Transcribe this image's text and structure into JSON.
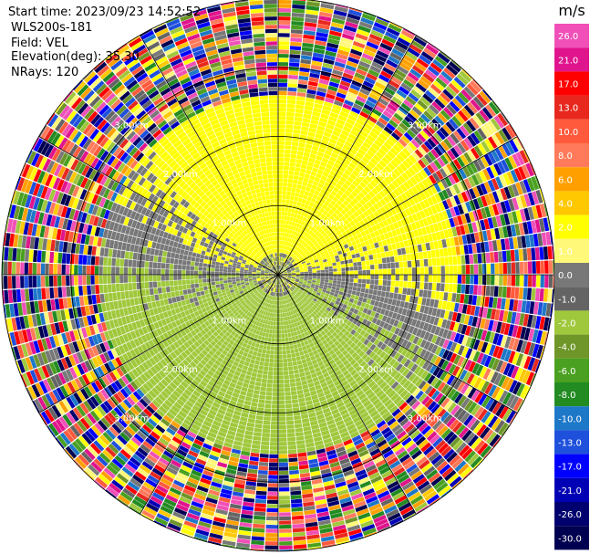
{
  "header": {
    "start_time": "Start time: 2023/09/23 14:52:52",
    "instrument": "WLS200s-181",
    "field": "Field: VEL",
    "elevation": "Elevation(deg): 35.30",
    "nrays": "NRays: 120"
  },
  "chart_data": {
    "type": "heatmap",
    "projection": "polar-ppi",
    "field": "VEL",
    "units": "m/s",
    "n_rays": 120,
    "range_rings_km": [
      1.0,
      2.0,
      3.0
    ],
    "ring_label_texts": [
      "1.00km",
      "2.00km",
      "3.00km"
    ],
    "max_range_km": 4.0,
    "colorbar": {
      "label": "m/s",
      "ticks": [
        "26.0",
        "21.0",
        "17.0",
        "13.0",
        "10.0",
        "8.0",
        "6.0",
        "4.0",
        "2.0",
        "1.0",
        "0.0",
        "-1.0",
        "-2.0",
        "-4.0",
        "-6.0",
        "-8.0",
        "-10.0",
        "-13.0",
        "-17.0",
        "-21.0",
        "-26.0",
        "-30.0"
      ],
      "colors": [
        "#f050b8",
        "#e0148c",
        "#ff0000",
        "#e8281e",
        "#ff5a3c",
        "#ff7a5a",
        "#ffa000",
        "#ffc800",
        "#ffff00",
        "#fff878",
        "#787878",
        "#646464",
        "#a0c83c",
        "#6e9628",
        "#4aa020",
        "#228b22",
        "#1e78c8",
        "#1e50dc",
        "#0000ff",
        "#0000b4",
        "#00006e",
        "#000050"
      ]
    },
    "regions": [
      {
        "range_km": [
          0.0,
          0.3
        ],
        "pattern": "mixed",
        "values": [
          0.0,
          -1.0,
          2.0,
          -2.0
        ]
      },
      {
        "range_km": [
          0.3,
          2.6
        ],
        "pattern": "azimuthal",
        "north": 2.0,
        "south": -2.0,
        "transition": 0.0
      },
      {
        "range_km": [
          2.6,
          4.0
        ],
        "pattern": "noise",
        "values": [
          26.0,
          21.0,
          17.0,
          13.0,
          10.0,
          8.0,
          6.0,
          4.0,
          2.0,
          1.0,
          0.0,
          -1.0,
          -2.0,
          -4.0,
          -6.0,
          -8.0,
          -10.0,
          -13.0,
          -17.0,
          -21.0,
          -26.0,
          -30.0
        ]
      }
    ]
  }
}
